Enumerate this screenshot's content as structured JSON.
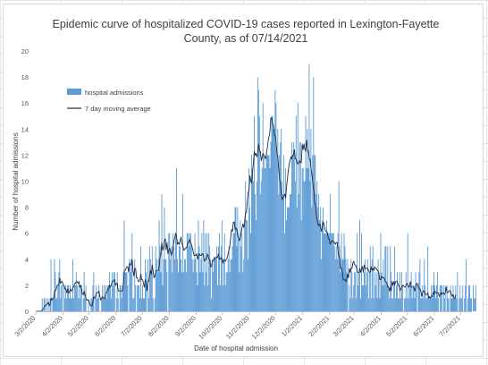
{
  "chart_data": {
    "type": "bar",
    "title_line1": "Epidemic curve of hospitalized COVID-19 cases reported in Lexington-Fayette",
    "title_line2": "County, as of 07/14/2021",
    "xlabel": "Date of hospital admission",
    "ylabel": "Number of hospital admissions",
    "ylim": [
      0,
      20
    ],
    "yticks": [
      "0",
      "2",
      "4",
      "6",
      "8",
      "10",
      "12",
      "14",
      "16",
      "18",
      "20"
    ],
    "x_start": "2020-03-02",
    "x_end": "2021-07-14",
    "xticks": [
      "3/2/2020",
      "4/2/2020",
      "5/2/2020",
      "6/2/2020",
      "7/2/2020",
      "8/2/2020",
      "9/2/2020",
      "10/2/2020",
      "11/2/2020",
      "12/2/2020",
      "1/2/2021",
      "2/2/2021",
      "3/2/2021",
      "4/2/2021",
      "5/2/2021",
      "6/2/2021",
      "7/2/2021"
    ],
    "grid": {
      "horizontal": false,
      "vertical": false
    },
    "legend_position": "top-left",
    "series": [
      {
        "name": "hospital admissions",
        "kind": "bar",
        "color": "#5b9bd5",
        "values": [
          0,
          0,
          0,
          0,
          0,
          0,
          0,
          1,
          0,
          1,
          1,
          0,
          1,
          0,
          1,
          0,
          1,
          4,
          0,
          1,
          1,
          4,
          3,
          1,
          1,
          2,
          3,
          4,
          1,
          2,
          2,
          0,
          2,
          1,
          2,
          1,
          2,
          2,
          1,
          2,
          1,
          1,
          4,
          1,
          2,
          2,
          3,
          2,
          1,
          2,
          1,
          2,
          2,
          0,
          1,
          3,
          1,
          2,
          0,
          0,
          1,
          0,
          0,
          1,
          1,
          2,
          3,
          0,
          1,
          2,
          1,
          1,
          2,
          0,
          0,
          1,
          2,
          1,
          2,
          1,
          2,
          1,
          2,
          2,
          3,
          2,
          1,
          3,
          2,
          3,
          3,
          0,
          1,
          3,
          1,
          0,
          2,
          2,
          1,
          2,
          3,
          7,
          3,
          3,
          3,
          2,
          0,
          4,
          3,
          4,
          6,
          1,
          1,
          4,
          2,
          0,
          2,
          2,
          2,
          1,
          5,
          1,
          2,
          1,
          1,
          4,
          3,
          0,
          4,
          1,
          5,
          4,
          3,
          5,
          1,
          0,
          1,
          5,
          4,
          3,
          4,
          7,
          5,
          3,
          9,
          2,
          4,
          8,
          4,
          4,
          3,
          0,
          6,
          6,
          4,
          5,
          3,
          6,
          5,
          4,
          6,
          11,
          4,
          3,
          5,
          5,
          4,
          3,
          9,
          3,
          4,
          4,
          3,
          6,
          6,
          5,
          6,
          6,
          5,
          4,
          3,
          4,
          6,
          4,
          3,
          2,
          7,
          5,
          3,
          4,
          6,
          3,
          7,
          2,
          6,
          3,
          6,
          2,
          6,
          5,
          4,
          1,
          4,
          3,
          4,
          4,
          4,
          5,
          2,
          5,
          6,
          2,
          5,
          7,
          2,
          4,
          6,
          2,
          3,
          3,
          4,
          5,
          3,
          4,
          4,
          5,
          6,
          6,
          8,
          8,
          5,
          8,
          6,
          3,
          7,
          5,
          6,
          3,
          4,
          7,
          10,
          7,
          7,
          4,
          11,
          8,
          6,
          12,
          11,
          10,
          15,
          9,
          7,
          10,
          18,
          17,
          15,
          9,
          10,
          11,
          16,
          12,
          11,
          11,
          12,
          12,
          12,
          12,
          11,
          13,
          15,
          15,
          14,
          14,
          17,
          16,
          12,
          14,
          9,
          12,
          13,
          14,
          10,
          9,
          12,
          6,
          11,
          7,
          8,
          8,
          8,
          9,
          9,
          13,
          12,
          13,
          12,
          10,
          15,
          8,
          16,
          9,
          13,
          13,
          7,
          11,
          11,
          10,
          10,
          15,
          11,
          14,
          11,
          19,
          10,
          14,
          8,
          12,
          18,
          12,
          12,
          9,
          10,
          8,
          9,
          7,
          8,
          4,
          7,
          8,
          6,
          6,
          6,
          7,
          6,
          6,
          6,
          9,
          6,
          6,
          6,
          6,
          5,
          4,
          5,
          4,
          6,
          10,
          5,
          3,
          6,
          4,
          4,
          6,
          5,
          4,
          3,
          4,
          0,
          2,
          1,
          4,
          3,
          1,
          2,
          3,
          3,
          1,
          6,
          2,
          3,
          7,
          1,
          6,
          2,
          2,
          3,
          4,
          2,
          3,
          4,
          1,
          3,
          5,
          1,
          4,
          5,
          1,
          3,
          2,
          3,
          1,
          4,
          3,
          1,
          6,
          3,
          2,
          4,
          2,
          5,
          5,
          2,
          5,
          2,
          1,
          5,
          3,
          1,
          1,
          2,
          5,
          1,
          2,
          3,
          1,
          1,
          3,
          1,
          3,
          2,
          0,
          1,
          1,
          3,
          1,
          6,
          1,
          2,
          2,
          3,
          1,
          2,
          2,
          1,
          3,
          2,
          0,
          2,
          3,
          4,
          1,
          1,
          2,
          1,
          4,
          2,
          1,
          1,
          5,
          1,
          1,
          1,
          2,
          1,
          2,
          3,
          2,
          1,
          2,
          3,
          1,
          0,
          2,
          2,
          2,
          0,
          2,
          1,
          2,
          0,
          2,
          1,
          1,
          0,
          2,
          1,
          1,
          2,
          1,
          1,
          2,
          1,
          3,
          0,
          1,
          2,
          1,
          1,
          2,
          0,
          1,
          2,
          4,
          0,
          1,
          2,
          2,
          1,
          1,
          0,
          2,
          1,
          1,
          2
        ]
      },
      {
        "name": "7 day moving average",
        "kind": "line",
        "color": "#1f2a44",
        "values": [
          0.0,
          0.0,
          0.0,
          0.0,
          0.0,
          0.0,
          0.0,
          0.14,
          0.14,
          0.29,
          0.43,
          0.43,
          0.57,
          0.57,
          0.71,
          0.43,
          0.57,
          1.0,
          0.86,
          1.0,
          1.0,
          1.57,
          1.57,
          1.71,
          2.0,
          2.0,
          2.14,
          2.57,
          2.14,
          2.29,
          2.29,
          2.0,
          2.0,
          1.71,
          1.71,
          1.43,
          1.71,
          1.43,
          1.43,
          1.71,
          1.57,
          1.57,
          1.86,
          1.86,
          2.14,
          2.14,
          2.29,
          2.29,
          2.14,
          2.29,
          1.86,
          2.0,
          1.71,
          1.29,
          1.29,
          1.57,
          1.29,
          1.0,
          0.86,
          0.86,
          0.86,
          0.71,
          0.43,
          0.43,
          0.43,
          0.71,
          1.14,
          1.0,
          1.14,
          1.43,
          1.43,
          1.43,
          1.57,
          1.14,
          0.86,
          1.0,
          1.14,
          1.0,
          1.0,
          1.0,
          1.43,
          1.43,
          1.71,
          1.71,
          2.0,
          1.86,
          2.0,
          2.29,
          2.29,
          2.43,
          2.43,
          2.0,
          2.14,
          2.14,
          1.57,
          1.57,
          1.57,
          1.57,
          1.57,
          1.57,
          2.14,
          3.14,
          3.14,
          3.29,
          3.43,
          3.43,
          3.0,
          3.71,
          3.57,
          3.57,
          4.0,
          3.14,
          2.71,
          3.29,
          3.29,
          2.57,
          2.57,
          2.29,
          2.29,
          2.43,
          2.86,
          2.43,
          2.43,
          2.14,
          1.86,
          2.43,
          2.29,
          1.57,
          2.29,
          2.29,
          2.71,
          3.14,
          2.86,
          3.57,
          3.14,
          2.57,
          2.71,
          3.0,
          3.14,
          3.14,
          3.14,
          3.43,
          4.14,
          4.43,
          5.29,
          4.71,
          4.86,
          5.43,
          5.57,
          4.71,
          5.29,
          4.43,
          4.71,
          4.86,
          4.57,
          4.29,
          4.57,
          5.0,
          5.43,
          5.71,
          6.0,
          5.71,
          5.14,
          5.29,
          5.14,
          5.43,
          5.71,
          5.14,
          5.14,
          4.71,
          4.71,
          4.86,
          4.86,
          5.0,
          5.29,
          5.29,
          5.57,
          5.29,
          5.14,
          4.86,
          4.57,
          4.29,
          4.29,
          4.29,
          4.43,
          4.0,
          4.29,
          4.43,
          4.29,
          4.29,
          4.43,
          4.43,
          4.14,
          3.86,
          4.0,
          4.0,
          4.43,
          4.29,
          4.0,
          3.86,
          3.43,
          3.43,
          3.86,
          3.86,
          4.14,
          4.0,
          4.14,
          4.14,
          4.14,
          4.43,
          4.0,
          4.0,
          4.14,
          4.0,
          3.71,
          4.0,
          3.86,
          3.86,
          4.0,
          4.14,
          4.43,
          4.71,
          5.0,
          5.71,
          6.29,
          6.14,
          6.86,
          6.86,
          6.29,
          6.43,
          6.29,
          5.71,
          5.71,
          5.43,
          5.57,
          6.0,
          6.43,
          6.71,
          6.43,
          6.86,
          7.57,
          7.57,
          8.43,
          9.14,
          9.29,
          10.43,
          10.0,
          9.86,
          10.71,
          11.43,
          12.29,
          12.0,
          12.14,
          11.86,
          12.14,
          12.86,
          12.29,
          12.29,
          11.57,
          11.86,
          12.14,
          12.0,
          11.86,
          11.71,
          12.14,
          12.57,
          13.14,
          13.43,
          13.86,
          14.86,
          14.86,
          14.43,
          14.29,
          13.57,
          13.43,
          13.0,
          12.14,
          11.86,
          11.0,
          10.14,
          9.71,
          9.0,
          8.57,
          8.71,
          8.86,
          9.0,
          8.71,
          9.57,
          10.14,
          10.86,
          11.29,
          11.57,
          11.86,
          11.71,
          12.0,
          12.0,
          12.43,
          11.71,
          11.71,
          11.43,
          11.29,
          11.43,
          11.57,
          11.43,
          11.43,
          12.86,
          12.43,
          12.86,
          12.43,
          12.29,
          13.14,
          12.43,
          12.29,
          11.71,
          11.71,
          11.0,
          10.57,
          9.86,
          9.43,
          8.43,
          8.14,
          7.43,
          7.0,
          6.71,
          6.57,
          6.71,
          6.43,
          6.14,
          6.57,
          6.86,
          6.71,
          6.29,
          6.14,
          6.14,
          6.0,
          5.57,
          5.57,
          5.14,
          5.29,
          5.43,
          5.43,
          5.29,
          5.29,
          5.14,
          5.29,
          5.29,
          4.57,
          4.29,
          4.14,
          3.29,
          3.29,
          3.0,
          2.43,
          2.43,
          2.43,
          2.29,
          2.57,
          2.86,
          2.57,
          3.29,
          3.0,
          3.29,
          3.29,
          3.71,
          3.86,
          3.57,
          3.57,
          3.43,
          3.0,
          3.0,
          3.0,
          3.29,
          3.0,
          3.29,
          3.43,
          3.0,
          3.57,
          3.29,
          3.29,
          3.29,
          3.29,
          3.14,
          3.0,
          3.0,
          3.43,
          3.14,
          3.29,
          3.14,
          3.43,
          3.29,
          3.29,
          3.14,
          3.14,
          2.86,
          2.43,
          2.43,
          2.71,
          2.57,
          2.57,
          2.57,
          2.29,
          2.29,
          2.14,
          1.86,
          1.86,
          1.57,
          1.86,
          1.57,
          2.29,
          2.0,
          2.29,
          2.0,
          2.29,
          2.29,
          2.29,
          2.0,
          2.0,
          1.57,
          1.71,
          1.86,
          2.0,
          2.0,
          1.86,
          1.86,
          2.0,
          2.14,
          2.0,
          1.86,
          2.0,
          2.29,
          1.86,
          1.86,
          1.86,
          1.86,
          1.57,
          1.86,
          2.14,
          2.14,
          1.86,
          1.71,
          1.71,
          1.57,
          1.14,
          1.43,
          1.57,
          1.57,
          1.29,
          1.29,
          1.29,
          1.43,
          1.0,
          1.14,
          1.0,
          1.14,
          1.14,
          1.43,
          1.29,
          1.57,
          1.43,
          1.43,
          1.43,
          1.43,
          1.14,
          1.29,
          1.43,
          1.29,
          1.43,
          1.43,
          1.29,
          1.43,
          1.86,
          1.43,
          1.43,
          1.57,
          1.57,
          1.57,
          1.29,
          1.14,
          1.29,
          1.0,
          1.0,
          1.29
        ]
      }
    ]
  }
}
